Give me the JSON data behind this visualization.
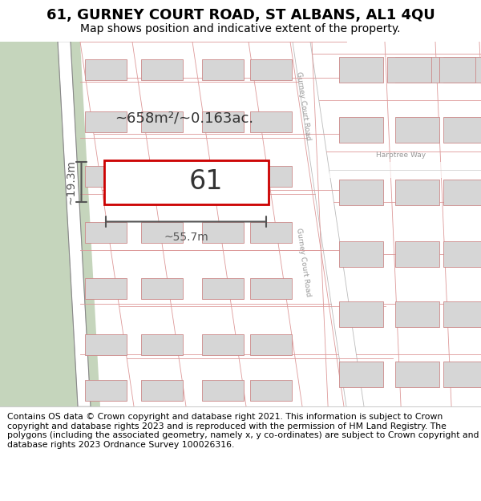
{
  "title": "61, GURNEY COURT ROAD, ST ALBANS, AL1 4QU",
  "subtitle": "Map shows position and indicative extent of the property.",
  "footer": "Contains OS data © Crown copyright and database right 2021. This information is subject to Crown copyright and database rights 2023 and is reproduced with the permission of HM Land Registry. The polygons (including the associated geometry, namely x, y co-ordinates) are subject to Crown copyright and database rights 2023 Ordnance Survey 100026316.",
  "map_bg": "#f2f2ee",
  "property_outline_color": "#cc0000",
  "building_fill": "#d6d6d6",
  "building_edge": "#cc8888",
  "parcel_line_color": "#dd9999",
  "green_color": "#c5d5bc",
  "road_fill": "#ffffff",
  "road_line_color": "#aaaaaa",
  "road_label_color": "#999999",
  "dim_color": "#555555",
  "area_text": "~658m²/~0.163ac.",
  "label_61": "61",
  "dim_width": "~55.7m",
  "dim_height": "~19.3m",
  "title_fontsize": 13,
  "subtitle_fontsize": 10,
  "footer_fontsize": 7.8
}
